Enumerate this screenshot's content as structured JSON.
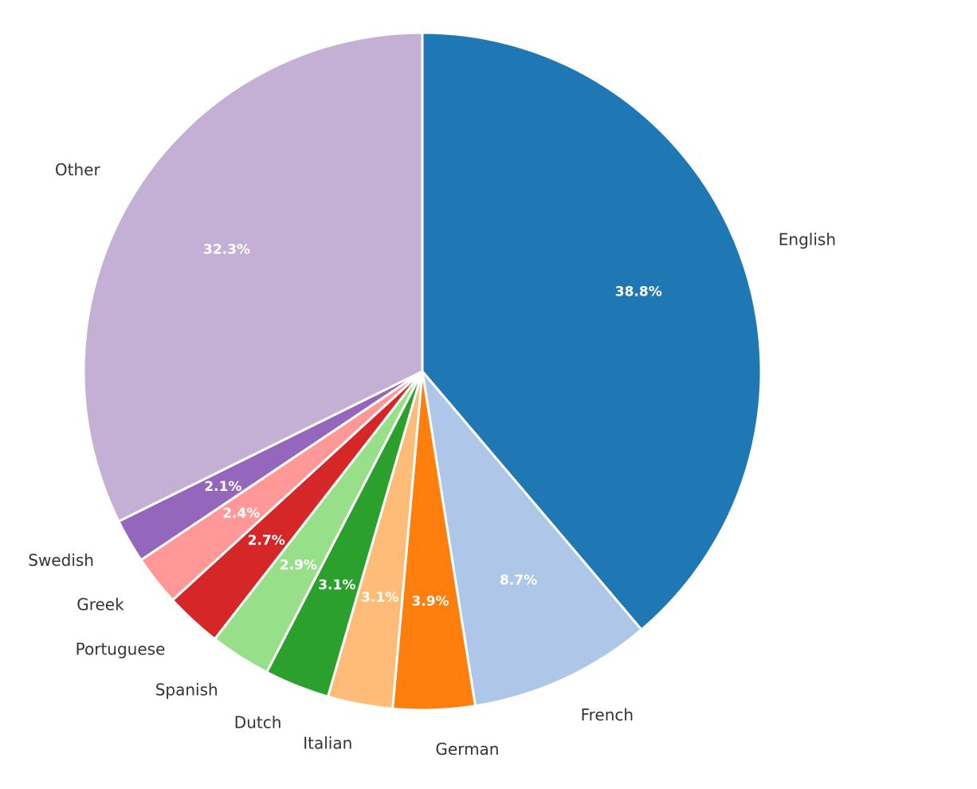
{
  "chart_data": {
    "type": "pie",
    "title": "",
    "start_angle_deg": 90,
    "direction": "clockwise",
    "slices": [
      {
        "label": "English",
        "value": 38.8,
        "pct_text": "38.8%",
        "color": "#1f77b4"
      },
      {
        "label": "French",
        "value": 8.7,
        "pct_text": "8.7%",
        "color": "#aec7e8"
      },
      {
        "label": "German",
        "value": 3.9,
        "pct_text": "3.9%",
        "color": "#ff7f0e"
      },
      {
        "label": "Italian",
        "value": 3.1,
        "pct_text": "3.1%",
        "color": "#ffbb78"
      },
      {
        "label": "Dutch",
        "value": 3.1,
        "pct_text": "3.1%",
        "color": "#2ca02c"
      },
      {
        "label": "Spanish",
        "value": 2.9,
        "pct_text": "2.9%",
        "color": "#98df8a"
      },
      {
        "label": "Portuguese",
        "value": 2.7,
        "pct_text": "2.7%",
        "color": "#d62728"
      },
      {
        "label": "Greek",
        "value": 2.4,
        "pct_text": "2.4%",
        "color": "#ff9896"
      },
      {
        "label": "Swedish",
        "value": 2.1,
        "pct_text": "2.1%",
        "color": "#9467bd"
      },
      {
        "label": "Other",
        "value": 32.3,
        "pct_text": "32.3%",
        "color": "#c5b0d5"
      }
    ]
  }
}
